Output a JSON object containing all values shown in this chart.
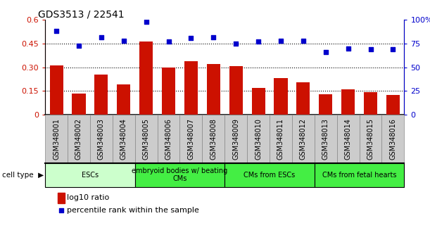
{
  "title": "GDS3513 / 22541",
  "samples": [
    "GSM348001",
    "GSM348002",
    "GSM348003",
    "GSM348004",
    "GSM348005",
    "GSM348006",
    "GSM348007",
    "GSM348008",
    "GSM348009",
    "GSM348010",
    "GSM348011",
    "GSM348012",
    "GSM348013",
    "GSM348014",
    "GSM348015",
    "GSM348016"
  ],
  "log10_ratio": [
    0.31,
    0.135,
    0.255,
    0.19,
    0.465,
    0.3,
    0.34,
    0.32,
    0.305,
    0.17,
    0.23,
    0.205,
    0.13,
    0.158,
    0.14,
    0.125
  ],
  "percentile_rank": [
    88.0,
    73.0,
    82.0,
    78.0,
    98.0,
    77.0,
    81.0,
    82.0,
    75.0,
    77.0,
    78.0,
    78.0,
    66.0,
    70.0,
    69.0,
    69.0
  ],
  "cell_type_groups": [
    {
      "label": "ESCs",
      "start": 0,
      "end": 3,
      "color": "#ccffcc"
    },
    {
      "label": "embryoid bodies w/ beating\nCMs",
      "start": 4,
      "end": 7,
      "color": "#44ee44"
    },
    {
      "label": "CMs from ESCs",
      "start": 8,
      "end": 11,
      "color": "#44ee44"
    },
    {
      "label": "CMs from fetal hearts",
      "start": 12,
      "end": 15,
      "color": "#44ee44"
    }
  ],
  "bar_color": "#cc1100",
  "dot_color": "#0000cc",
  "left_yticks": [
    0,
    0.15,
    0.3,
    0.45,
    0.6
  ],
  "left_ylabels": [
    "0",
    "0.15",
    "0.30",
    "0.45",
    "0.6"
  ],
  "right_yticks": [
    0,
    25,
    50,
    75,
    100
  ],
  "right_ylabels": [
    "0",
    "25",
    "50",
    "75",
    "100%"
  ],
  "left_ylabel_color": "#cc1100",
  "right_ylabel_color": "#0000cc",
  "dotted_lines": [
    0.15,
    0.3,
    0.45
  ],
  "legend_bar_label": "log10 ratio",
  "legend_dot_label": "percentile rank within the sample",
  "cell_type_label": "cell type",
  "ticklabel_bg": "#cccccc",
  "ticklabel_fontsize": 7,
  "title_fontsize": 10,
  "axis_fontsize": 8
}
